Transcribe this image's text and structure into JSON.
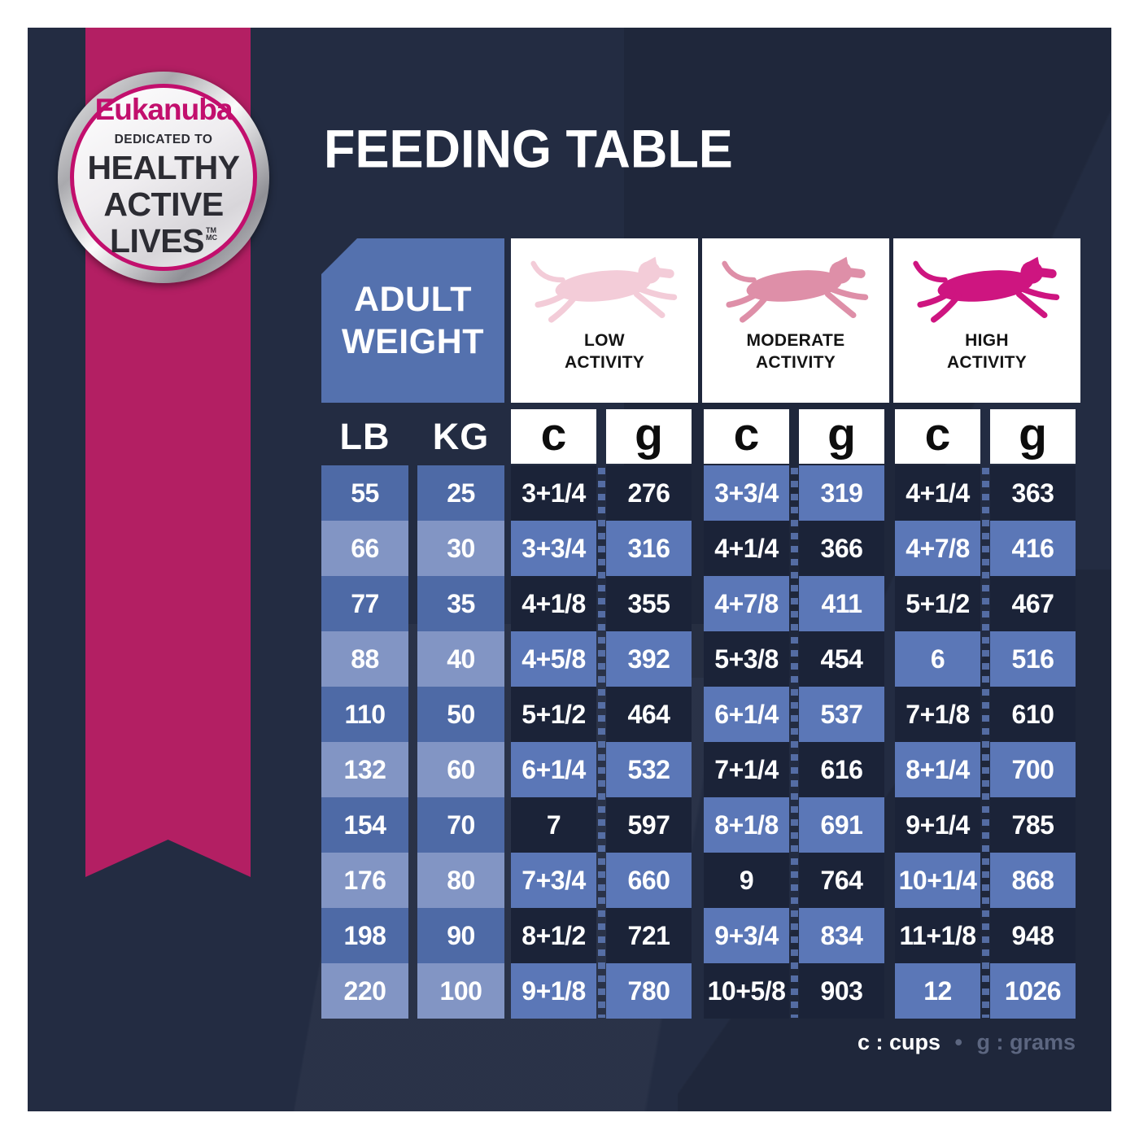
{
  "badge": {
    "brand": "Eukanuba",
    "dedicated": "DEDICATED TO",
    "line1": "HEALTHY",
    "line2": "ACTIVE",
    "line3": "LIVES",
    "tm": "TM",
    "mc": "MC"
  },
  "title": "FEEDING TABLE",
  "table": {
    "adult_weight": [
      "ADULT",
      "WEIGHT"
    ],
    "activities": [
      {
        "line1": "LOW",
        "line2": "ACTIVITY",
        "dog_color": "#f3ccd8"
      },
      {
        "line1": "MODERATE",
        "line2": "ACTIVITY",
        "dog_color": "#de8fa8"
      },
      {
        "line1": "HIGH",
        "line2": "ACTIVITY",
        "dog_color": "#ce1580"
      }
    ],
    "unit_headers": [
      "LB",
      "KG",
      "c",
      "g",
      "c",
      "g",
      "c",
      "g"
    ],
    "rows": [
      [
        "55",
        "25",
        "3+1/4",
        "276",
        "3+3/4",
        "319",
        "4+1/4",
        "363"
      ],
      [
        "66",
        "30",
        "3+3/4",
        "316",
        "4+1/4",
        "366",
        "4+7/8",
        "416"
      ],
      [
        "77",
        "35",
        "4+1/8",
        "355",
        "4+7/8",
        "411",
        "5+1/2",
        "467"
      ],
      [
        "88",
        "40",
        "4+5/8",
        "392",
        "5+3/8",
        "454",
        "6",
        "516"
      ],
      [
        "110",
        "50",
        "5+1/2",
        "464",
        "6+1/4",
        "537",
        "7+1/8",
        "610"
      ],
      [
        "132",
        "60",
        "6+1/4",
        "532",
        "7+1/4",
        "616",
        "8+1/4",
        "700"
      ],
      [
        "154",
        "70",
        "7",
        "597",
        "8+1/8",
        "691",
        "9+1/4",
        "785"
      ],
      [
        "176",
        "80",
        "7+3/4",
        "660",
        "9",
        "764",
        "10+1/4",
        "868"
      ],
      [
        "198",
        "90",
        "8+1/2",
        "721",
        "9+3/4",
        "834",
        "11+1/8",
        "948"
      ],
      [
        "220",
        "100",
        "9+1/8",
        "780",
        "10+5/8",
        "903",
        "12",
        "1026"
      ]
    ]
  },
  "legend": {
    "cups": "c : cups",
    "separator": "•",
    "grams": "g : grams"
  },
  "colors": {
    "panel_navy": "#232c42",
    "ribbon_pink": "#b31f63",
    "badge_pink": "#c20f6d",
    "header_blue": "#5471ae",
    "cell_dark_navy": "#1b2338",
    "cell_blue": "#5b77b7",
    "cell_weight_blue": "#4e6aa6",
    "cell_weight_light_blue": "#8295c4",
    "low_dog": "#f3ccd8",
    "moderate_dog": "#de8fa8",
    "high_dog": "#ce1580"
  }
}
